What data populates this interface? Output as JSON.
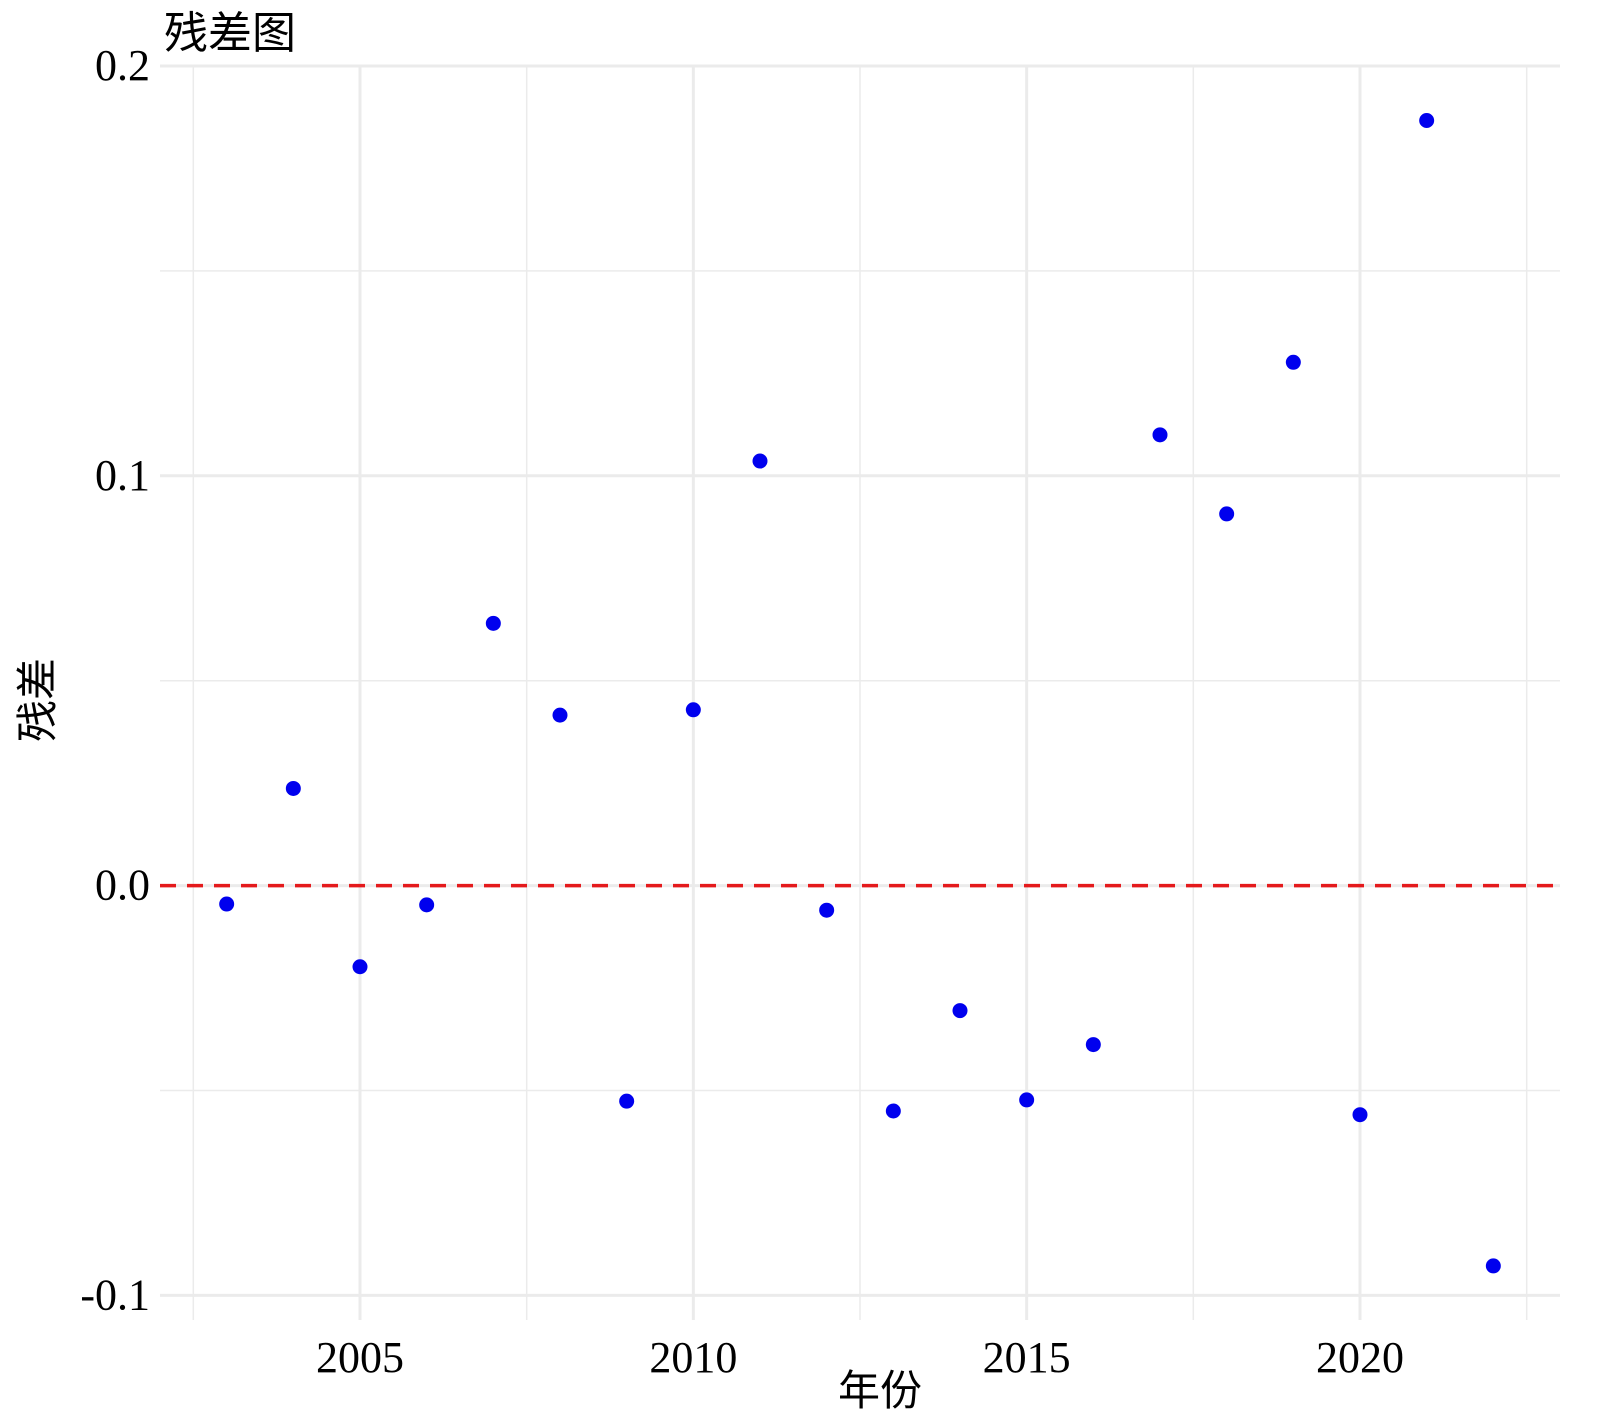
{
  "chart_data": {
    "type": "scatter",
    "title": "残差图",
    "xlabel": "年份",
    "ylabel": "残差",
    "xlim": [
      2002.0,
      2023.0
    ],
    "ylim": [
      -0.106,
      0.2
    ],
    "x_ticks": [
      2005,
      2010,
      2015,
      2020
    ],
    "x_tick_labels": [
      "2005",
      "2010",
      "2015",
      "2020"
    ],
    "y_ticks": [
      -0.1,
      0.0,
      0.1,
      0.2
    ],
    "y_tick_labels": [
      "-0.1",
      "0.0",
      "0.1",
      "0.2"
    ],
    "grid": true,
    "reference_line": {
      "y": 0.0,
      "style": "dashed",
      "color": "#e41a1c"
    },
    "point_color": "#0000ee",
    "x": [
      2003,
      2004,
      2005,
      2006,
      2007,
      2008,
      2009,
      2010,
      2011,
      2012,
      2013,
      2014,
      2015,
      2016,
      2017,
      2018,
      2019,
      2020,
      2021,
      2022
    ],
    "y": [
      -0.0045,
      0.0237,
      -0.0198,
      -0.0047,
      0.064,
      0.0416,
      -0.0526,
      0.0429,
      0.1036,
      -0.006,
      -0.055,
      -0.0305,
      -0.0523,
      -0.0388,
      0.11,
      0.0907,
      0.1277,
      -0.0559,
      0.1867,
      -0.0928
    ]
  }
}
